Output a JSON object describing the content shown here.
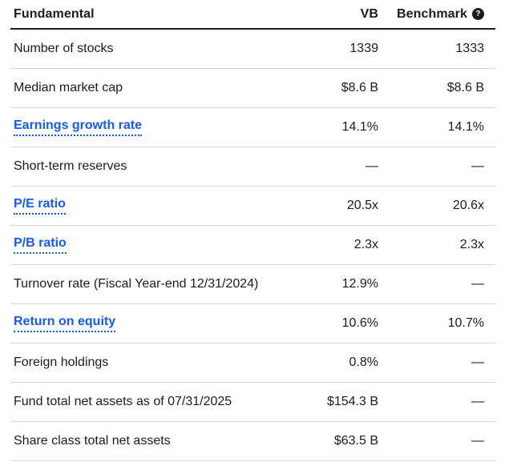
{
  "colors": {
    "link_blue": "#145bff",
    "text": "#1b1c1e",
    "divider": "#d9d9d9",
    "header_rule": "#1b1c1e",
    "help_icon_bg": "#1b1c1e"
  },
  "table": {
    "header": {
      "fundamental_label": "Fundamental",
      "vb_label": "VB",
      "benchmark_label": "Benchmark",
      "help_icon_glyph": "?"
    },
    "rows": [
      {
        "label": "Number of stocks",
        "link": false,
        "vb": "1339",
        "benchmark": "1333"
      },
      {
        "label": "Median market cap",
        "link": false,
        "vb": "$8.6 B",
        "benchmark": "$8.6 B"
      },
      {
        "label": "Earnings growth rate",
        "link": true,
        "vb": "14.1%",
        "benchmark": "14.1%"
      },
      {
        "label": "Short-term reserves",
        "link": false,
        "vb": "—",
        "benchmark": "—"
      },
      {
        "label": "P/E ratio",
        "link": true,
        "vb": "20.5x",
        "benchmark": "20.6x"
      },
      {
        "label": "P/B ratio",
        "link": true,
        "vb": "2.3x",
        "benchmark": "2.3x"
      },
      {
        "label": "Turnover rate (Fiscal Year-end 12/31/2024)",
        "link": false,
        "vb": "12.9%",
        "benchmark": "—"
      },
      {
        "label": "Return on equity",
        "link": true,
        "vb": "10.6%",
        "benchmark": "10.7%"
      },
      {
        "label": "Foreign holdings",
        "link": false,
        "vb": "0.8%",
        "benchmark": "—"
      },
      {
        "label": "Fund total net assets as of 07/31/2025",
        "link": false,
        "vb": "$154.3 B",
        "benchmark": "—"
      },
      {
        "label": "Share class total net assets",
        "link": false,
        "vb": "$63.5 B",
        "benchmark": "—"
      }
    ]
  }
}
